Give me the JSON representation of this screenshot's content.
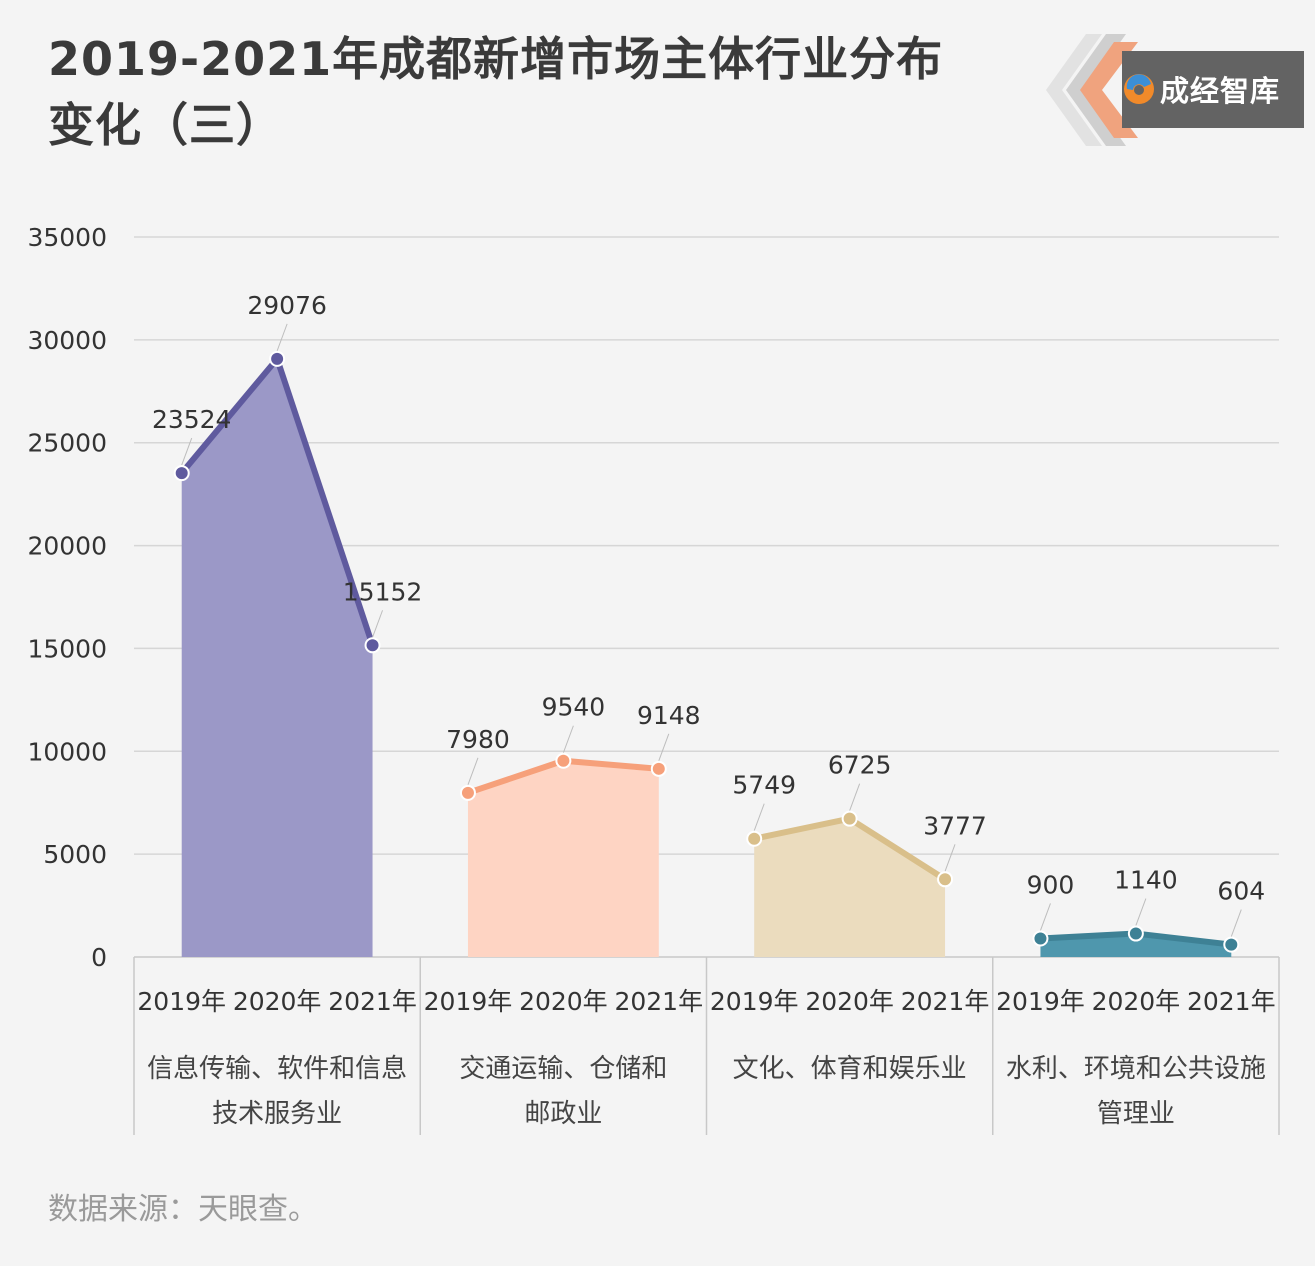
{
  "title_line1": "2019-2021年成都新增市场主体行业分布",
  "title_line2": "变化（三）",
  "brand": {
    "name": "成经智库"
  },
  "source": "数据来源：天眼查。",
  "chart_data": {
    "type": "area",
    "ylim": [
      0,
      35000
    ],
    "yticks": [
      0,
      5000,
      10000,
      15000,
      20000,
      25000,
      30000,
      35000
    ],
    "grid": true,
    "years": [
      "2019年",
      "2020年",
      "2021年"
    ],
    "groups": [
      {
        "category_lines": [
          "信息传输、软件和信息",
          "技术服务业"
        ],
        "values": [
          23524,
          29076,
          15152
        ],
        "line_color": "#5f5a9e",
        "fill_color": "#9b98c7"
      },
      {
        "category_lines": [
          "交通运输、仓储和",
          "邮政业"
        ],
        "values": [
          7980,
          9540,
          9148
        ],
        "line_color": "#f6a07a",
        "fill_color": "#fed4c3"
      },
      {
        "category_lines": [
          "文化、体育和娱乐业"
        ],
        "values": [
          5749,
          6725,
          3777
        ],
        "line_color": "#d9bf8a",
        "fill_color": "#ebdcbe"
      },
      {
        "category_lines": [
          "水利、环境和公共设施",
          "管理业"
        ],
        "values": [
          900,
          1140,
          604
        ],
        "line_color": "#3e8195",
        "fill_color": "#4f97ad"
      }
    ]
  }
}
